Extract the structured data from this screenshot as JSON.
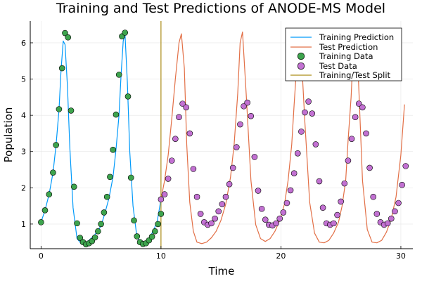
{
  "chart_data": {
    "type": "line",
    "title": "Training and Test Predictions of ANODE-MS Model",
    "xlabel": "Time",
    "ylabel": "Population",
    "xlim": [
      -0.9,
      31.0
    ],
    "ylim": [
      0.32,
      6.6
    ],
    "xticks": [
      0,
      10,
      20,
      30
    ],
    "yticks": [
      1,
      2,
      3,
      4,
      5,
      6
    ],
    "grid": true,
    "legend_position": "top-right",
    "colors": {
      "training_prediction": "#009AFA",
      "test_prediction": "#E26F46",
      "training_data": "#3DA44D",
      "test_data": "#C271D2",
      "split": "#AC8D18"
    },
    "series": [
      {
        "name": "Training Prediction",
        "kind": "line",
        "x": [
          0,
          0.33,
          0.67,
          1.0,
          1.25,
          1.5,
          1.67,
          1.85,
          2.0,
          2.2,
          2.4,
          2.67,
          3.0,
          3.3,
          3.67,
          4.0,
          4.33,
          4.67,
          5.0,
          5.33,
          5.67,
          6.0,
          6.25,
          6.5,
          6.67,
          6.85,
          7.0,
          7.2,
          7.4,
          7.67,
          8.0,
          8.33,
          8.67,
          9.0,
          9.33,
          9.67,
          10.0
        ],
        "y": [
          1.05,
          1.38,
          1.82,
          2.42,
          3.18,
          4.15,
          5.25,
          6.05,
          5.95,
          4.8,
          3.1,
          1.45,
          0.6,
          0.48,
          0.48,
          0.55,
          0.65,
          0.78,
          0.95,
          1.3,
          1.72,
          2.3,
          3.05,
          4.0,
          5.1,
          6.05,
          6.25,
          4.9,
          3.0,
          1.5,
          0.62,
          0.5,
          0.5,
          0.58,
          0.8,
          1.05,
          1.68
        ]
      },
      {
        "name": "Test Prediction",
        "kind": "line",
        "x": [
          10.0,
          10.3,
          10.6,
          10.9,
          11.2,
          11.5,
          11.7,
          11.95,
          12.15,
          12.4,
          12.7,
          13.0,
          13.4,
          13.8,
          14.2,
          14.6,
          15.0,
          15.4,
          15.8,
          16.1,
          16.4,
          16.6,
          16.8,
          17.1,
          17.5,
          17.9,
          18.3,
          18.7,
          19.1,
          19.5,
          19.9,
          20.3,
          20.6,
          20.9,
          21.1,
          21.3,
          21.6,
          22.0,
          22.4,
          22.8,
          23.2,
          23.6,
          24.0,
          24.4,
          24.8,
          25.1,
          25.4,
          25.6,
          25.85,
          26.1,
          26.4,
          26.8,
          27.2,
          27.6,
          28.0,
          28.4,
          28.8,
          29.2,
          29.6,
          30.0,
          30.3
        ],
        "y": [
          1.68,
          2.2,
          2.9,
          3.9,
          5.0,
          6.0,
          6.25,
          5.3,
          3.2,
          1.6,
          0.8,
          0.5,
          0.46,
          0.5,
          0.62,
          0.8,
          1.1,
          1.55,
          2.3,
          3.2,
          4.6,
          6.0,
          6.3,
          4.6,
          2.2,
          0.98,
          0.6,
          0.52,
          0.6,
          0.8,
          1.1,
          1.55,
          2.2,
          3.2,
          4.3,
          5.3,
          6.3,
          3.8,
          1.6,
          0.75,
          0.5,
          0.48,
          0.55,
          0.75,
          1.05,
          1.5,
          2.2,
          3.3,
          4.5,
          6.3,
          5.5,
          2.2,
          0.85,
          0.5,
          0.48,
          0.55,
          0.78,
          1.15,
          1.75,
          2.9,
          4.3
        ]
      },
      {
        "name": "Training Data",
        "kind": "scatter",
        "x": [
          0.0,
          0.33,
          0.67,
          1.0,
          1.25,
          1.5,
          1.75,
          2.0,
          2.25,
          2.5,
          2.75,
          3.0,
          3.25,
          3.5,
          3.75,
          4.0,
          4.25,
          4.5,
          4.75,
          5.0,
          5.25,
          5.5,
          5.75,
          6.0,
          6.25,
          6.5,
          6.75,
          7.0,
          7.25,
          7.5,
          7.75,
          8.0,
          8.25,
          8.5,
          8.75,
          9.0,
          9.25,
          9.5,
          9.75,
          10.0
        ],
        "y": [
          1.05,
          1.38,
          1.82,
          2.42,
          3.18,
          4.17,
          5.3,
          6.27,
          6.15,
          4.13,
          2.03,
          1.02,
          0.62,
          0.5,
          0.44,
          0.47,
          0.53,
          0.63,
          0.8,
          1.0,
          1.32,
          1.75,
          2.3,
          3.05,
          4.02,
          5.12,
          6.18,
          6.28,
          4.52,
          2.28,
          1.1,
          0.66,
          0.5,
          0.45,
          0.47,
          0.55,
          0.65,
          0.8,
          1.0,
          1.28
        ]
      },
      {
        "name": "Test Data",
        "kind": "scatter",
        "x": [
          10.0,
          10.3,
          10.6,
          10.9,
          11.2,
          11.5,
          11.8,
          12.1,
          12.4,
          12.7,
          13.0,
          13.3,
          13.6,
          13.9,
          14.2,
          14.5,
          14.8,
          15.1,
          15.4,
          15.7,
          16.0,
          16.3,
          16.6,
          16.9,
          17.2,
          17.5,
          17.8,
          18.1,
          18.4,
          18.7,
          19.0,
          19.3,
          19.6,
          19.9,
          20.2,
          20.5,
          20.8,
          21.1,
          21.4,
          21.7,
          22.0,
          22.3,
          22.6,
          22.9,
          23.2,
          23.5,
          23.8,
          24.1,
          24.4,
          24.7,
          25.0,
          25.3,
          25.6,
          25.9,
          26.2,
          26.5,
          26.8,
          27.1,
          27.4,
          27.7,
          28.0,
          28.3,
          28.6,
          28.9,
          29.2,
          29.5,
          29.8,
          30.1,
          30.4
        ],
        "y": [
          1.68,
          1.82,
          2.25,
          2.75,
          3.35,
          3.95,
          4.32,
          4.22,
          3.5,
          2.52,
          1.75,
          1.28,
          1.05,
          0.98,
          1.02,
          1.15,
          1.35,
          1.55,
          1.75,
          2.1,
          2.55,
          3.12,
          3.75,
          4.25,
          4.35,
          3.98,
          2.85,
          1.92,
          1.42,
          1.12,
          0.98,
          0.96,
          1.02,
          1.15,
          1.32,
          1.58,
          1.93,
          2.4,
          2.95,
          3.55,
          4.08,
          4.38,
          4.05,
          3.2,
          2.18,
          1.45,
          1.02,
          0.98,
          1.02,
          1.25,
          1.62,
          2.12,
          2.75,
          3.35,
          3.95,
          4.32,
          4.22,
          3.5,
          2.55,
          1.75,
          1.28,
          1.05,
          0.98,
          1.02,
          1.15,
          1.35,
          1.58,
          2.08,
          2.6
        ]
      },
      {
        "name": "Training/Test Split",
        "kind": "vline",
        "x": 10.0
      }
    ]
  }
}
